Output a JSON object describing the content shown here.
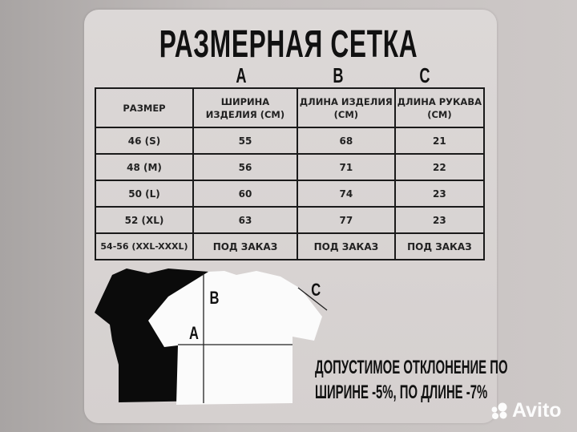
{
  "title": "РАЗМЕРНАЯ СЕТКА",
  "column_letters": [
    "A",
    "B",
    "C"
  ],
  "table": {
    "headers": [
      "РАЗМЕР",
      "ШИРИНА ИЗДЕЛИЯ (СМ)",
      "ДЛИНА ИЗДЕЛИЯ (СМ)",
      "ДЛИНА РУКАВА (СМ)"
    ],
    "rows": [
      [
        "46 (S)",
        "55",
        "68",
        "21"
      ],
      [
        "48 (M)",
        "56",
        "71",
        "22"
      ],
      [
        "50 (L)",
        "60",
        "74",
        "23"
      ],
      [
        "52 (XL)",
        "63",
        "77",
        "23"
      ],
      [
        "54-56 (XXL-XXXL)",
        "ПОД ЗАКАЗ",
        "ПОД ЗАКАЗ",
        "ПОД ЗАКАЗ"
      ]
    ]
  },
  "diagram_labels": {
    "a": "A",
    "b": "B",
    "c": "C"
  },
  "note": {
    "line1": "ДОПУСТИМОЕ ОТКЛОНЕНИЕ ПО",
    "line2": "ШИРИНЕ -5%, ПО ДЛИНЕ -7%"
  },
  "watermark": "Avito",
  "colors": {
    "text": "#111111",
    "card": "#d8d3d2"
  }
}
